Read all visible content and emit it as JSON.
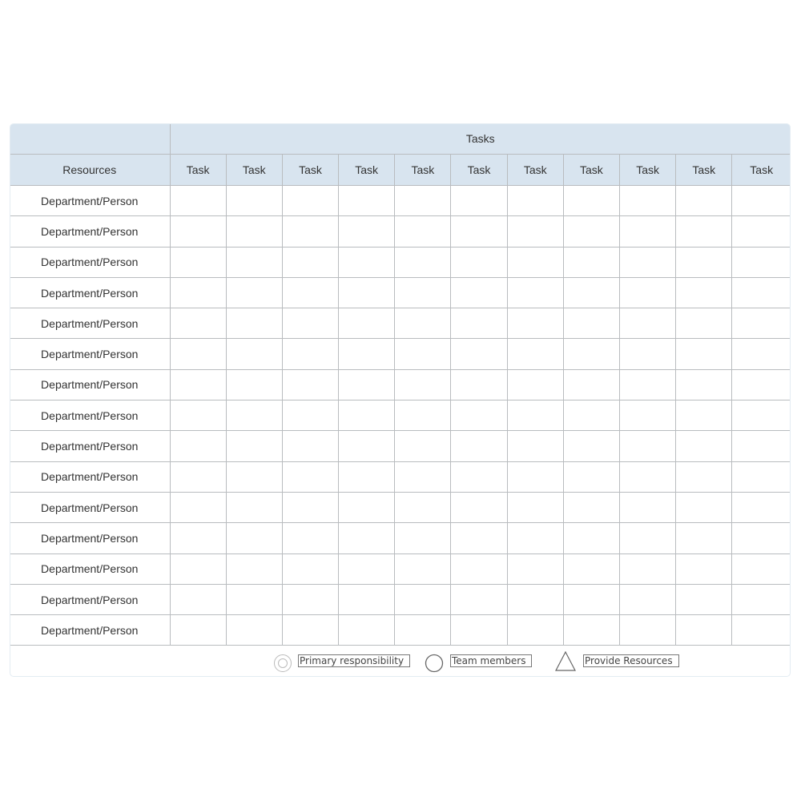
{
  "header": {
    "group_title": "Tasks",
    "resources_label": "Resources",
    "task_labels": [
      "Task",
      "Task",
      "Task",
      "Task",
      "Task",
      "Task",
      "Task",
      "Task",
      "Task",
      "Task",
      "Task"
    ]
  },
  "rows": [
    "Department/Person",
    "Department/Person",
    "Department/Person",
    "Department/Person",
    "Department/Person",
    "Department/Person",
    "Department/Person",
    "Department/Person",
    "Department/Person",
    "Department/Person",
    "Department/Person",
    "Department/Person",
    "Department/Person",
    "Department/Person",
    "Department/Person"
  ],
  "legend": {
    "primary": "Primary responsibility",
    "team": "Team members",
    "resources": "Provide Resources"
  },
  "colors": {
    "header_bg": "#d8e4ef",
    "grid": "#b9bcbf"
  }
}
